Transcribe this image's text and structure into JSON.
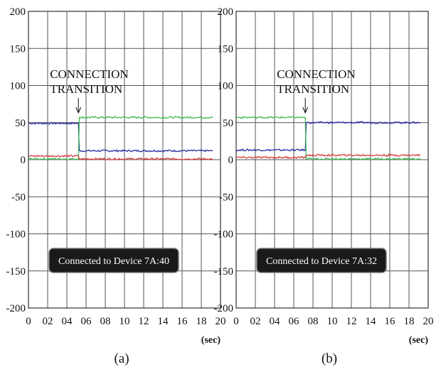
{
  "chart_data": [
    {
      "type": "line",
      "caption": "(a)",
      "x_unit": "(sec)",
      "xlim": [
        0,
        20
      ],
      "ylim": [
        -200,
        200
      ],
      "x_ticks": [
        "0",
        "02",
        "04",
        "06",
        "08",
        "10",
        "12",
        "14",
        "16",
        "18",
        "20"
      ],
      "y_ticks": [
        "200",
        "150",
        "100",
        "50",
        "0",
        "-50",
        "-100",
        "-150",
        "-200"
      ],
      "grid": true,
      "annotation": {
        "line1": "CONNECTION",
        "line2": "TRANSITION",
        "x": 5.2
      },
      "status_label": "Connected to Device 7A:40",
      "series": [
        {
          "color": "#2b2ba6",
          "points": [
            [
              0,
              49
            ],
            [
              5.2,
              49
            ],
            [
              5.3,
              12
            ],
            [
              19.2,
              12
            ]
          ]
        },
        {
          "color": "#3cba54",
          "points": [
            [
              0,
              1
            ],
            [
              5.2,
              1
            ],
            [
              5.3,
              57
            ],
            [
              19.2,
              57
            ]
          ]
        },
        {
          "color": "#d93a3a",
          "points": [
            [
              0,
              5
            ],
            [
              5.2,
              5
            ],
            [
              5.3,
              1
            ],
            [
              19.2,
              1
            ]
          ]
        }
      ]
    },
    {
      "type": "line",
      "caption": "(b)",
      "x_unit": "(sec)",
      "xlim": [
        0,
        20
      ],
      "ylim": [
        -200,
        200
      ],
      "x_ticks": [
        "0",
        "02",
        "04",
        "06",
        "08",
        "10",
        "12",
        "14",
        "16",
        "18",
        "20"
      ],
      "y_ticks": [
        "200",
        "150",
        "100",
        "50",
        "0",
        "-50",
        "-100",
        "-150",
        "-200"
      ],
      "grid": true,
      "annotation": {
        "line1": "CONNECTION",
        "line2": "TRANSITION",
        "x": 7.2
      },
      "status_label": "Connected to Device 7A:32",
      "series": [
        {
          "color": "#2b2ba6",
          "points": [
            [
              0,
              13
            ],
            [
              7.2,
              13
            ],
            [
              7.3,
              50
            ],
            [
              19.2,
              50
            ]
          ]
        },
        {
          "color": "#3cba54",
          "points": [
            [
              0,
              57
            ],
            [
              7.2,
              57
            ],
            [
              7.3,
              1
            ],
            [
              19.2,
              1
            ]
          ]
        },
        {
          "color": "#d93a3a",
          "points": [
            [
              0,
              3
            ],
            [
              7.2,
              3
            ],
            [
              7.3,
              6
            ],
            [
              19.2,
              6
            ]
          ]
        }
      ]
    }
  ]
}
